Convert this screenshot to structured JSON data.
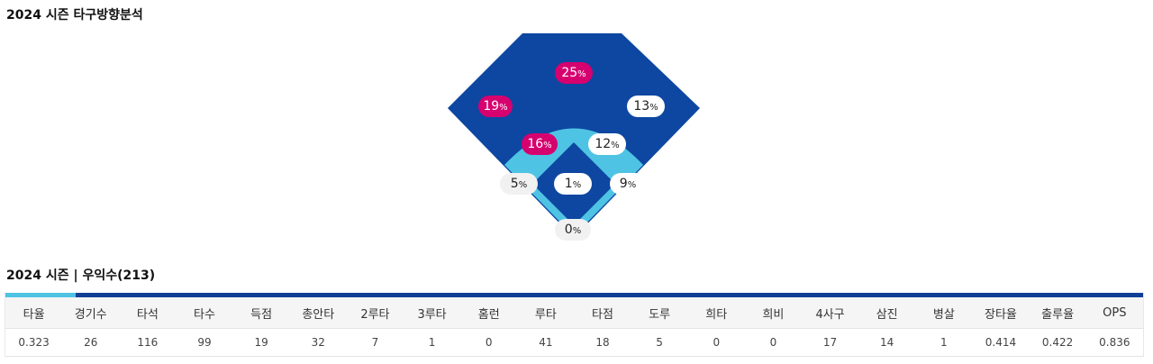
{
  "direction_title": "2024 시즌 타구방향분석",
  "stats_title": "2024 시즌 | 우익수(213)",
  "colors": {
    "outfield": "#0d47a1",
    "infield_arc": "#4fc3e3",
    "hot": "#d6006f",
    "cool": "#ffffff",
    "foul": "#f1f1f1",
    "table_bar": "#123f96",
    "table_accent": "#4fc3e3"
  },
  "zones": [
    {
      "id": "left-field",
      "value": 19,
      "unit": "%",
      "tone": "hot"
    },
    {
      "id": "center-field",
      "value": 25,
      "unit": "%",
      "tone": "hot"
    },
    {
      "id": "right-field",
      "value": 13,
      "unit": "%",
      "tone": "cool"
    },
    {
      "id": "left-infield",
      "value": 16,
      "unit": "%",
      "tone": "hot"
    },
    {
      "id": "right-infield",
      "value": 12,
      "unit": "%",
      "tone": "cool"
    },
    {
      "id": "left-foul",
      "value": 5,
      "unit": "%",
      "tone": "out"
    },
    {
      "id": "pitcher",
      "value": 1,
      "unit": "%",
      "tone": "cool"
    },
    {
      "id": "right-foul",
      "value": 9,
      "unit": "%",
      "tone": "cool"
    },
    {
      "id": "catcher",
      "value": 0,
      "unit": "%",
      "tone": "out"
    }
  ],
  "table": {
    "headers": [
      "타율",
      "경기수",
      "타석",
      "타수",
      "득점",
      "총안타",
      "2루타",
      "3루타",
      "홈런",
      "루타",
      "타점",
      "도루",
      "희타",
      "희비",
      "4사구",
      "삼진",
      "병살",
      "장타율",
      "출루율",
      "OPS"
    ],
    "values": [
      "0.323",
      "26",
      "116",
      "99",
      "19",
      "32",
      "7",
      "1",
      "0",
      "41",
      "18",
      "5",
      "0",
      "0",
      "17",
      "14",
      "1",
      "0.414",
      "0.422",
      "0.836"
    ]
  }
}
